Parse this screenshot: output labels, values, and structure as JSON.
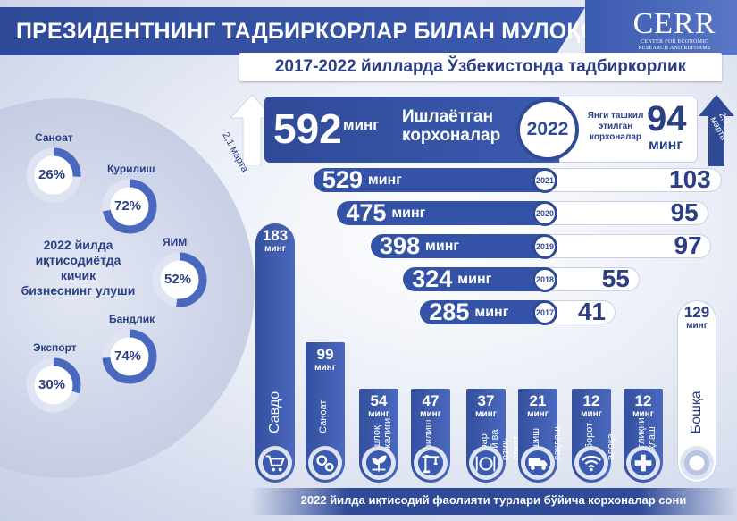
{
  "header": {
    "title": "ПРЕЗИДЕНТНИНГ ТАДБИРКОРЛАР БИЛАН МУЛОҚОТИ",
    "subtitle": "2017-2022 йилларда Ўзбекистонда тадбиркорлик"
  },
  "logo": {
    "name": "CERR",
    "line1": "CENTER FOR ECONOMIC",
    "line2": "RESEARCH AND REFORMS"
  },
  "share": {
    "caption_line1": "2022 йилда",
    "caption_line2": "иқтисодиётда кичик",
    "caption_line3": "бизнеснинг улуши",
    "items": [
      {
        "label": "Саноат",
        "value": 26,
        "text": "26%"
      },
      {
        "label": "Қурилиш",
        "value": 72,
        "text": "72%"
      },
      {
        "label": "ЯИМ",
        "value": 52,
        "text": "52%"
      },
      {
        "label": "Бандлик",
        "value": 74,
        "text": "74%"
      },
      {
        "label": "Экспорт",
        "value": 30,
        "text": "30%"
      }
    ]
  },
  "highlight": {
    "operating_value": "592",
    "operating_unit": "минг",
    "operating_label_line1": "Ишлаётган",
    "operating_label_line2": "корхоналар",
    "year": "2022",
    "new_label_line1": "Янги ташкил",
    "new_label_line2": "этилган",
    "new_label_line3": "корхоналар",
    "new_value": "94",
    "new_unit": "минг",
    "left_growth": "2,1 марта",
    "right_growth": "2,3 марта"
  },
  "years": [
    {
      "year": "2021",
      "operating": 529,
      "operating_text": "529",
      "unit": "минг",
      "new": 103,
      "new_text": "103"
    },
    {
      "year": "2020",
      "operating": 475,
      "operating_text": "475",
      "unit": "минг",
      "new": 95,
      "new_text": "95"
    },
    {
      "year": "2019",
      "operating": 398,
      "operating_text": "398",
      "unit": "минг",
      "new": 97,
      "new_text": "97"
    },
    {
      "year": "2018",
      "operating": 324,
      "operating_text": "324",
      "unit": "минг",
      "new": 55,
      "new_text": "55"
    },
    {
      "year": "2017",
      "operating": 285,
      "operating_text": "285",
      "unit": "минг",
      "new": 41,
      "new_text": "41"
    }
  ],
  "sectors": [
    {
      "label": "Савдо",
      "value": 183,
      "value_text": "183",
      "unit": "минг",
      "icon": "cart-icon"
    },
    {
      "label": "Саноат",
      "value": 99,
      "value_text": "99",
      "unit": "минг",
      "icon": "gears-icon"
    },
    {
      "label": "Қишлоқ хўжалиги",
      "value": 54,
      "value_text": "54",
      "unit": "минг",
      "icon": "sprout-icon"
    },
    {
      "label": "Қурилиш",
      "value": 47,
      "value_text": "47",
      "unit": "минг",
      "icon": "crane-icon"
    },
    {
      "label": "Турар жой ва озиқ-овқат",
      "value": 37,
      "value_text": "37",
      "unit": "минг",
      "icon": "dining-icon"
    },
    {
      "label": "Ташиш ва сақлаш",
      "value": 21,
      "value_text": "21",
      "unit": "минг",
      "icon": "truck-icon"
    },
    {
      "label": "Ахборот ва алоқа",
      "value": 12,
      "value_text": "12",
      "unit": "минг",
      "icon": "wifi-icon"
    },
    {
      "label": "Соғлиқни сақлаш",
      "value": 12,
      "value_text": "12",
      "unit": "минг",
      "icon": "medical-cross-icon"
    },
    {
      "label": "Бошқа",
      "value": 129,
      "value_text": "129",
      "unit": "минг",
      "icon": "circle-icon"
    }
  ],
  "footer": "2022 йилда иқтисодий фаолияти турлари бўйича корхоналар сони",
  "colors": {
    "primary": "#2f4a97",
    "accent": "#3553a6",
    "donut_bg": "#dfe4f2",
    "donut_fill": "#4a68bd"
  }
}
